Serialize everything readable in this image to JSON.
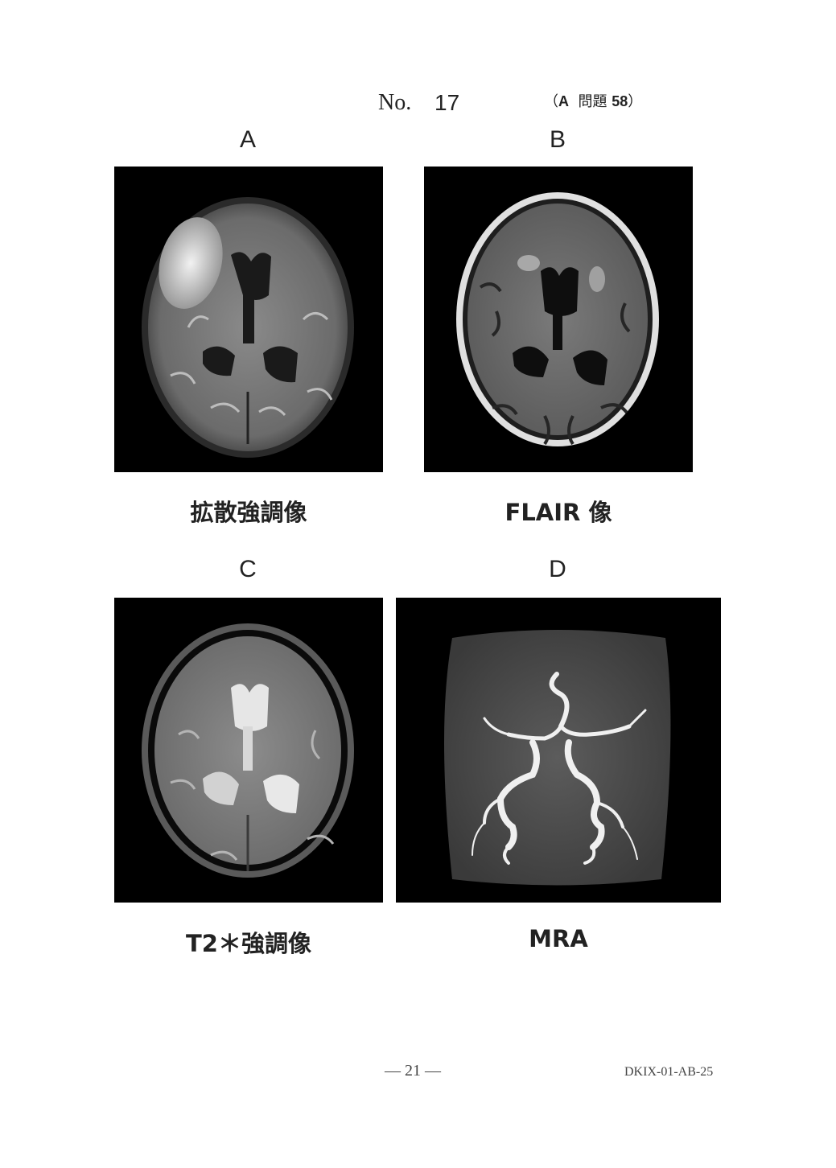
{
  "header": {
    "number_label": "No.",
    "number_value": "17",
    "question_ref": {
      "open": "（",
      "exam": "A",
      "label": "問題",
      "number": "58",
      "close": "）"
    }
  },
  "panels": [
    {
      "letter": "A",
      "caption": "拡散強調像"
    },
    {
      "letter": "B",
      "caption": "FLAIR 像"
    },
    {
      "letter": "C",
      "caption": "T2＊強調像"
    },
    {
      "letter": "D",
      "caption": "MRA"
    }
  ],
  "footer": {
    "page": "— 21 —",
    "code": "DKIX-01-AB-25"
  }
}
